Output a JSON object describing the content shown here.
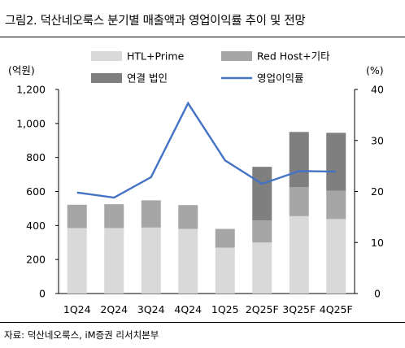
{
  "title": "그림2. 덕산네오룩스 분기별 매출액과 영업이익률 추이 및 전망",
  "source": "자료: 덕산네오룩스, iM증권 리서치본부",
  "chart_data": {
    "type": "bar",
    "stacked": true,
    "categories": [
      "1Q24",
      "2Q24",
      "3Q24",
      "4Q24",
      "1Q25",
      "2Q25F",
      "3Q25F",
      "4Q25F"
    ],
    "y_left_unit": "(억원)",
    "y_right_unit": "(%)",
    "ylim_left": [
      0,
      1200
    ],
    "ylim_right": [
      0,
      40
    ],
    "yticks_left": [
      0,
      200,
      400,
      600,
      800,
      "1,000",
      "1,200"
    ],
    "yticks_right": [
      0,
      10,
      20,
      30,
      40
    ],
    "legend_placement": "top-center",
    "grid": false,
    "series": [
      {
        "name": "HTL+Prime",
        "type": "bar",
        "axis": "left",
        "color": "#d9d9d9",
        "values": [
          385,
          385,
          388,
          380,
          270,
          300,
          455,
          438
        ]
      },
      {
        "name": "Red Host+기타",
        "type": "bar",
        "axis": "left",
        "color": "#a6a6a6",
        "values": [
          137,
          140,
          160,
          140,
          110,
          130,
          170,
          167
        ]
      },
      {
        "name": "연결 법인",
        "type": "bar",
        "axis": "left",
        "color": "#7f7f7f",
        "values": [
          0,
          0,
          0,
          0,
          0,
          315,
          325,
          340
        ]
      },
      {
        "name": "영업이익률",
        "type": "line",
        "axis": "right",
        "color": "#4472c4",
        "values": [
          19.8,
          18.8,
          22.8,
          37.3,
          26.1,
          21.5,
          24.0,
          23.9
        ]
      }
    ]
  }
}
